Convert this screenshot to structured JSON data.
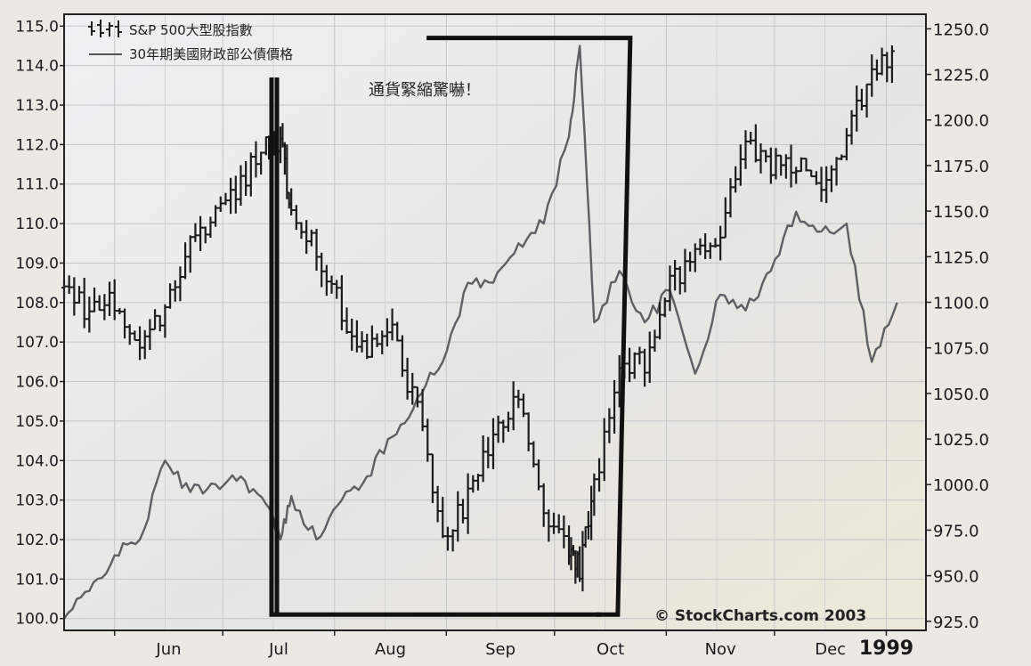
{
  "chart_data": {
    "type": "line",
    "title": "",
    "xlabel": "",
    "ylabel_left": "",
    "ylabel_right": "",
    "annotation": "通貨緊縮驚嚇！",
    "watermark": "© StockCharts.com 2003",
    "legend": {
      "placement": "top-left",
      "entries": [
        {
          "label": "S&P 500大型股指數",
          "style": "ohlc-bars"
        },
        {
          "label": "30年期美國財政部公債價格",
          "style": "line"
        }
      ]
    },
    "x_ticks": [
      "Jun",
      "Jul",
      "Aug",
      "Sep",
      "Oct",
      "Nov",
      "Dec",
      "1999"
    ],
    "y_left": {
      "ticks": [
        "100.0",
        "101.0",
        "102.0",
        "103.0",
        "104.0",
        "105.0",
        "106.0",
        "107.0",
        "108.0",
        "109.0",
        "110.0",
        "111.0",
        "112.0",
        "113.0",
        "114.0",
        "115.0"
      ],
      "range": [
        99.7,
        115.3
      ]
    },
    "y_right": {
      "ticks": [
        "925.0",
        "950.0",
        "975.0",
        "1000.0",
        "1025.0",
        "1050.0",
        "1075.0",
        "1100.0",
        "1125.0",
        "1150.0",
        "1175.0",
        "1200.0",
        "1225.0",
        "1250.0"
      ],
      "range": [
        920,
        1258
      ]
    },
    "grid": true,
    "series": [
      {
        "name": "S&P 500大型股指數",
        "axis": "right",
        "kind": "ohlc",
        "x": [
          "1998-05-18",
          "1998-05-25",
          "1998-06-01",
          "1998-06-08",
          "1998-06-15",
          "1998-06-22",
          "1998-06-29",
          "1998-07-06",
          "1998-07-13",
          "1998-07-17",
          "1998-07-20",
          "1998-07-27",
          "1998-08-03",
          "1998-08-10",
          "1998-08-17",
          "1998-08-24",
          "1998-08-31",
          "1998-09-07",
          "1998-09-14",
          "1998-09-21",
          "1998-09-28",
          "1998-10-05",
          "1998-10-08",
          "1998-10-12",
          "1998-10-19",
          "1998-10-26",
          "1998-11-02",
          "1998-11-09",
          "1998-11-16",
          "1998-11-23",
          "1998-11-30",
          "1998-12-07",
          "1998-12-14",
          "1998-12-21",
          "1998-12-28",
          "1999-01-04"
        ],
        "values": [
          1108,
          1094,
          1102,
          1080,
          1097,
          1133,
          1150,
          1166,
          1184,
          1188,
          1150,
          1128,
          1095,
          1072,
          1082,
          1040,
          968,
          992,
          1030,
          1045,
          990,
          960,
          955,
          1002,
          1060,
          1068,
          1110,
          1125,
          1140,
          1188,
          1175,
          1175,
          1162,
          1190,
          1228,
          1232
        ]
      },
      {
        "name": "30年期美國財政部公債價格",
        "axis": "left",
        "kind": "line",
        "x": [
          "1998-05-18",
          "1998-05-25",
          "1998-06-01",
          "1998-06-08",
          "1998-06-15",
          "1998-06-22",
          "1998-06-29",
          "1998-07-06",
          "1998-07-13",
          "1998-07-17",
          "1998-07-20",
          "1998-07-27",
          "1998-08-03",
          "1998-08-10",
          "1998-08-17",
          "1998-08-24",
          "1998-08-31",
          "1998-09-07",
          "1998-09-14",
          "1998-09-21",
          "1998-09-28",
          "1998-10-05",
          "1998-10-08",
          "1998-10-12",
          "1998-10-19",
          "1998-10-26",
          "1998-11-02",
          "1998-11-09",
          "1998-11-16",
          "1998-11-23",
          "1998-11-30",
          "1998-12-07",
          "1998-12-14",
          "1998-12-21",
          "1998-12-28",
          "1999-01-04"
        ],
        "values": [
          100.0,
          100.7,
          101.6,
          102.0,
          104.0,
          103.2,
          103.4,
          103.6,
          102.9,
          102.0,
          103.1,
          102.0,
          103.0,
          103.6,
          104.6,
          105.6,
          106.5,
          108.5,
          108.5,
          109.5,
          110.0,
          112.2,
          114.5,
          107.5,
          108.8,
          107.5,
          108.3,
          106.2,
          108.2,
          107.8,
          108.8,
          110.3,
          109.8,
          110.0,
          106.5,
          108.0
        ]
      }
    ]
  }
}
